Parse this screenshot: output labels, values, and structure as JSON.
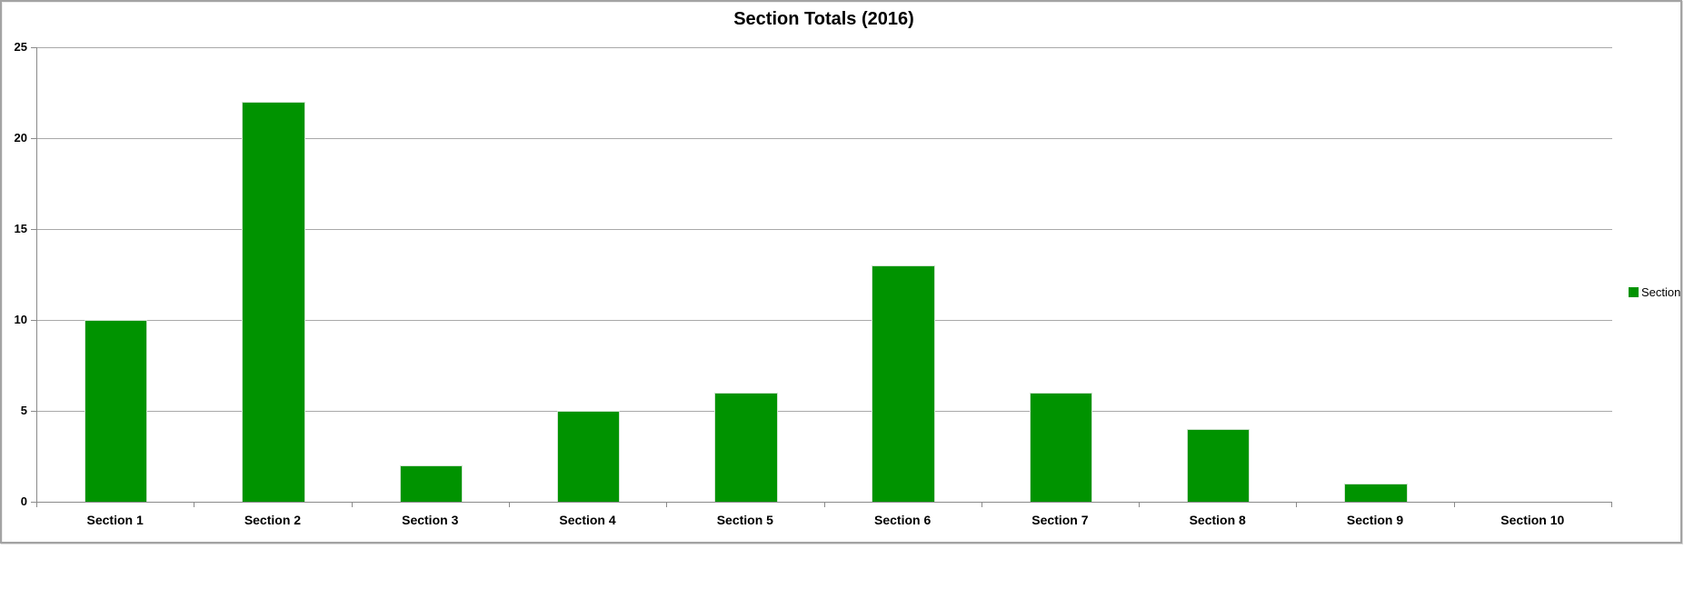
{
  "chart_data": {
    "type": "bar",
    "title": "Section Totals (2016)",
    "categories": [
      "Section 1",
      "Section 2",
      "Section 3",
      "Section 4",
      "Section 5",
      "Section 6",
      "Section 7",
      "Section 8",
      "Section 9",
      "Section 10"
    ],
    "values": [
      10,
      22,
      2,
      5,
      6,
      13,
      6,
      4,
      1,
      0
    ],
    "series_name": "Section",
    "legend": [
      "Section"
    ],
    "legend_position": "right",
    "xlabel": "",
    "ylabel": "",
    "ylim": [
      0,
      25
    ],
    "y_ticks": [
      0,
      5,
      10,
      15,
      20,
      25
    ],
    "grid": true,
    "bar_color": "#009300",
    "gridline_color": "#a9a9a9",
    "axis_color": "#8a8a8a",
    "text_color": "#000000"
  }
}
